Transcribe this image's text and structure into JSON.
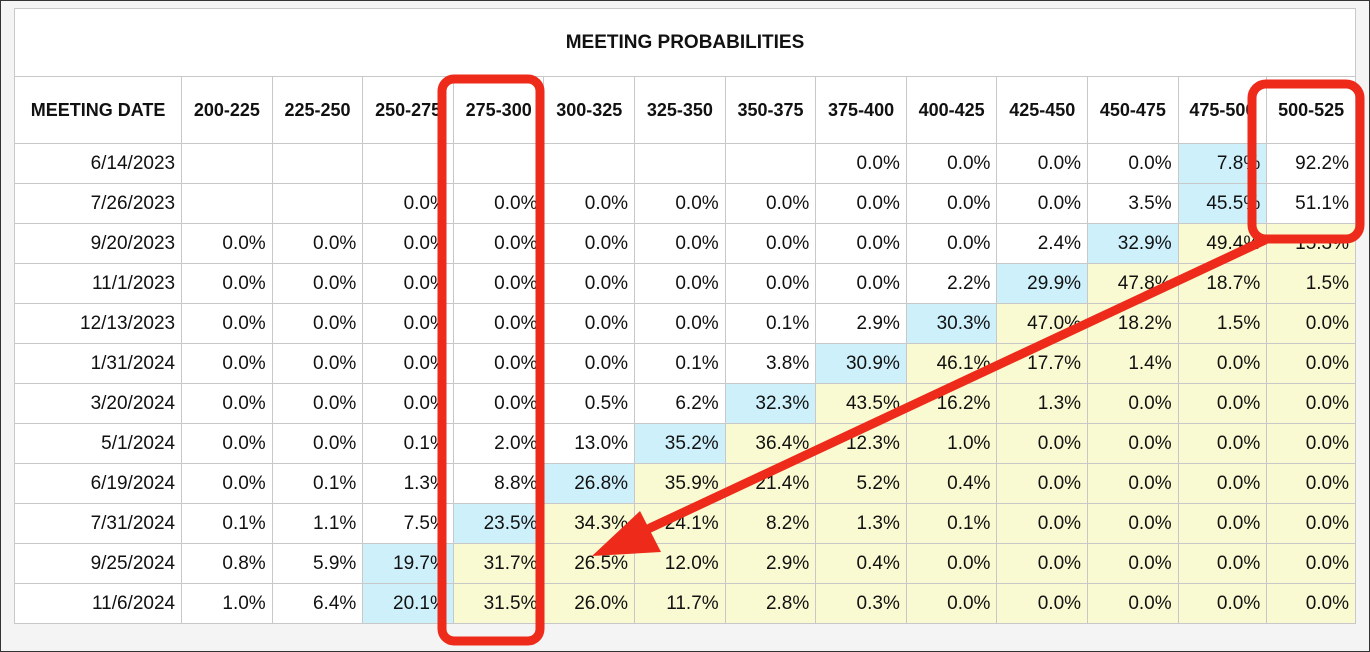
{
  "chart_data": {
    "type": "table",
    "title": "MEETING PROBABILITIES",
    "header_first": "MEETING DATE",
    "columns": [
      "200-225",
      "225-250",
      "250-275",
      "275-300",
      "300-325",
      "325-350",
      "350-375",
      "375-400",
      "400-425",
      "425-450",
      "450-475",
      "475-500",
      "500-525"
    ],
    "rows": [
      {
        "date": "6/14/2023",
        "cells": [
          "",
          "",
          "",
          "",
          "",
          "",
          "",
          "0.0%",
          "0.0%",
          "0.0%",
          "0.0%",
          "7.8%",
          "92.2%"
        ]
      },
      {
        "date": "7/26/2023",
        "cells": [
          "",
          "",
          "0.0%",
          "0.0%",
          "0.0%",
          "0.0%",
          "0.0%",
          "0.0%",
          "0.0%",
          "0.0%",
          "3.5%",
          "45.5%",
          "51.1%"
        ]
      },
      {
        "date": "9/20/2023",
        "cells": [
          "0.0%",
          "0.0%",
          "0.0%",
          "0.0%",
          "0.0%",
          "0.0%",
          "0.0%",
          "0.0%",
          "0.0%",
          "2.4%",
          "32.9%",
          "49.4%",
          "15.3%"
        ]
      },
      {
        "date": "11/1/2023",
        "cells": [
          "0.0%",
          "0.0%",
          "0.0%",
          "0.0%",
          "0.0%",
          "0.0%",
          "0.0%",
          "0.0%",
          "2.2%",
          "29.9%",
          "47.8%",
          "18.7%",
          "1.5%"
        ]
      },
      {
        "date": "12/13/2023",
        "cells": [
          "0.0%",
          "0.0%",
          "0.0%",
          "0.0%",
          "0.0%",
          "0.0%",
          "0.1%",
          "2.9%",
          "30.3%",
          "47.0%",
          "18.2%",
          "1.5%",
          "0.0%"
        ]
      },
      {
        "date": "1/31/2024",
        "cells": [
          "0.0%",
          "0.0%",
          "0.0%",
          "0.0%",
          "0.0%",
          "0.1%",
          "3.8%",
          "30.9%",
          "46.1%",
          "17.7%",
          "1.4%",
          "0.0%",
          "0.0%"
        ]
      },
      {
        "date": "3/20/2024",
        "cells": [
          "0.0%",
          "0.0%",
          "0.0%",
          "0.0%",
          "0.5%",
          "6.2%",
          "32.3%",
          "43.5%",
          "16.2%",
          "1.3%",
          "0.0%",
          "0.0%",
          "0.0%"
        ]
      },
      {
        "date": "5/1/2024",
        "cells": [
          "0.0%",
          "0.0%",
          "0.1%",
          "2.0%",
          "13.0%",
          "35.2%",
          "36.4%",
          "12.3%",
          "1.0%",
          "0.0%",
          "0.0%",
          "0.0%",
          "0.0%"
        ]
      },
      {
        "date": "6/19/2024",
        "cells": [
          "0.0%",
          "0.1%",
          "1.3%",
          "8.8%",
          "26.8%",
          "35.9%",
          "21.4%",
          "5.2%",
          "0.4%",
          "0.0%",
          "0.0%",
          "0.0%",
          "0.0%"
        ]
      },
      {
        "date": "7/31/2024",
        "cells": [
          "0.1%",
          "1.1%",
          "7.5%",
          "23.5%",
          "34.3%",
          "24.1%",
          "8.2%",
          "1.3%",
          "0.1%",
          "0.0%",
          "0.0%",
          "0.0%",
          "0.0%"
        ]
      },
      {
        "date": "9/25/2024",
        "cells": [
          "0.8%",
          "5.9%",
          "19.7%",
          "31.7%",
          "26.5%",
          "12.0%",
          "2.9%",
          "0.4%",
          "0.0%",
          "0.0%",
          "0.0%",
          "0.0%",
          "0.0%"
        ]
      },
      {
        "date": "11/6/2024",
        "cells": [
          "1.0%",
          "6.4%",
          "20.1%",
          "31.5%",
          "26.0%",
          "11.7%",
          "2.8%",
          "0.3%",
          "0.0%",
          "0.0%",
          "0.0%",
          "0.0%",
          "0.0%"
        ]
      }
    ],
    "highlight_colors": {
      "blue": "#cdf0fb",
      "yellow": "#fafad2",
      "annotation": "#ee2a1a"
    },
    "max_cells": [
      12,
      12,
      11,
      10,
      9,
      8,
      7,
      6,
      5,
      4,
      3,
      3
    ],
    "yellow_from": [
      null,
      null,
      12,
      11,
      10,
      9,
      8,
      7,
      6,
      5,
      4,
      4
    ],
    "annotations": [
      "box around column 275-300",
      "box around column 500-525 rows 6/14/2023-7/26/2023",
      "arrow from 500-525 toward 9/25/2024 300-325"
    ]
  }
}
